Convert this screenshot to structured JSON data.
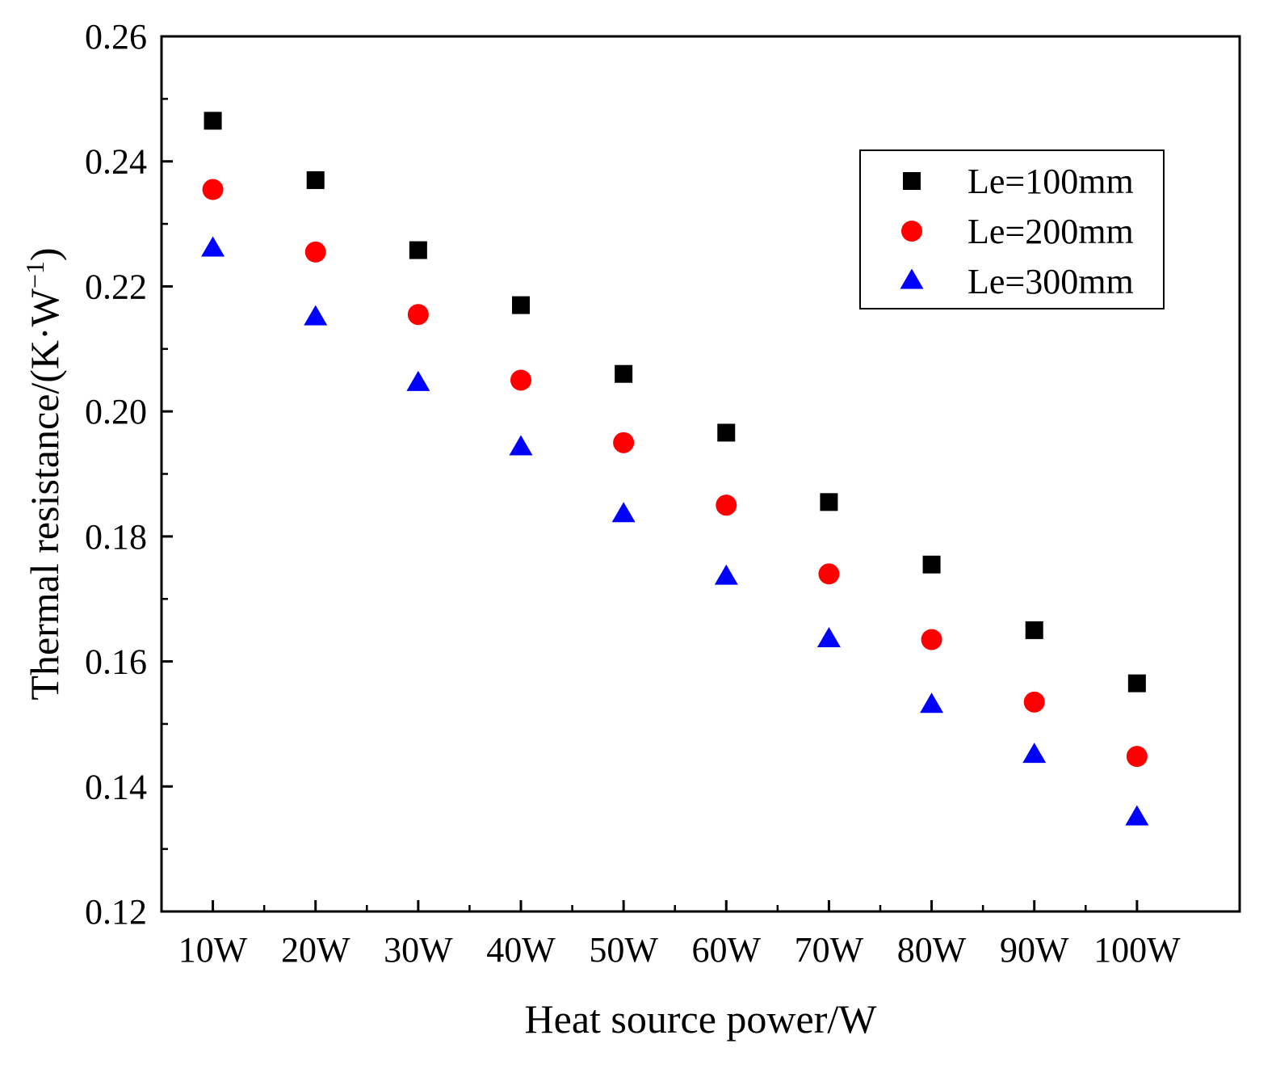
{
  "chart_data": {
    "type": "scatter",
    "title": "",
    "xlabel": "Heat source power/W",
    "ylabel_main": "Thermal resistance/(K·W",
    "ylabel_sup": "−1",
    "ylabel_close": ")",
    "categories": [
      "10W",
      "20W",
      "30W",
      "40W",
      "50W",
      "60W",
      "70W",
      "80W",
      "90W",
      "100W"
    ],
    "ylim": [
      0.12,
      0.26
    ],
    "yticks": [
      "0.12",
      "0.14",
      "0.16",
      "0.18",
      "0.20",
      "0.22",
      "0.24",
      "0.26"
    ],
    "grid": false,
    "legend_position": "top-right",
    "series": [
      {
        "name": "Le=100mm",
        "marker": "square",
        "color": "#000000",
        "values": [
          0.2465,
          0.237,
          0.2258,
          0.217,
          0.206,
          0.1966,
          0.1855,
          0.1755,
          0.165,
          0.1565
        ]
      },
      {
        "name": "Le=200mm",
        "marker": "circle",
        "color": "#ff0000",
        "values": [
          0.2355,
          0.2255,
          0.2155,
          0.205,
          0.195,
          0.185,
          0.174,
          0.1635,
          0.1535,
          0.1448
        ]
      },
      {
        "name": "Le=300mm",
        "marker": "triangle",
        "color": "#0000ff",
        "values": [
          0.226,
          0.215,
          0.2045,
          0.1942,
          0.1835,
          0.1735,
          0.1635,
          0.153,
          0.145,
          0.135
        ]
      }
    ]
  }
}
